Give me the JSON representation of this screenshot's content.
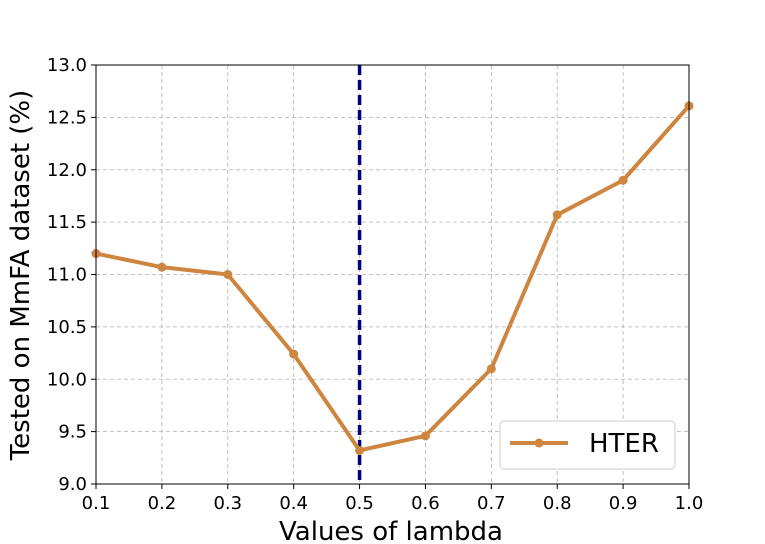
{
  "chart_data": {
    "type": "line",
    "title": "",
    "xlabel": "Values of lambda",
    "ylabel": "Tested on MmFA dataset (%)",
    "xlim": [
      0.1,
      1.0
    ],
    "ylim": [
      9.0,
      13.0
    ],
    "xticks": [
      "0.1",
      "0.2",
      "0.3",
      "0.4",
      "0.5",
      "0.6",
      "0.7",
      "0.8",
      "0.9",
      "1.0"
    ],
    "yticks": [
      "9.0",
      "9.5",
      "10.0",
      "10.5",
      "11.0",
      "11.5",
      "12.0",
      "12.5",
      "13.0"
    ],
    "grid": true,
    "legend_position": "bottom-right",
    "series": [
      {
        "name": "HTER",
        "color": "#cd853f",
        "x": [
          0.1,
          0.2,
          0.3,
          0.4,
          0.5,
          0.6,
          0.7,
          0.8,
          0.9,
          1.0
        ],
        "values": [
          11.2,
          11.07,
          11.0,
          10.24,
          9.32,
          9.46,
          10.1,
          11.57,
          11.9,
          12.61
        ]
      }
    ],
    "reference_line": {
      "x": 0.5,
      "color": "#000080",
      "style": "dashed"
    }
  }
}
